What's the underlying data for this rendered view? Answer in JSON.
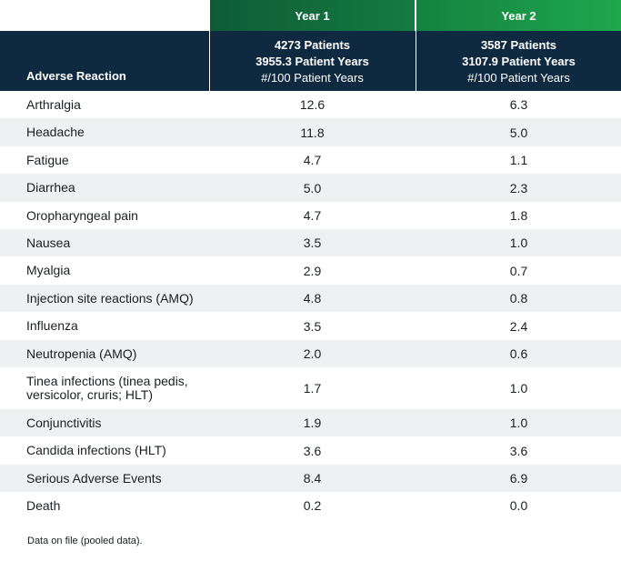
{
  "columns": {
    "year1": "Year 1",
    "year2": "Year 2",
    "reaction_header": "Adverse Reaction",
    "year1_patients": "4273 Patients",
    "year1_patient_years": "3955.3 Patient Years",
    "year1_unit": "#/100 Patient Years",
    "year2_patients": "3587 Patients",
    "year2_patient_years": "3107.9 Patient Years",
    "year2_unit": "#/100 Patient Years"
  },
  "rows": [
    {
      "name": "Arthralgia",
      "y1": "12.6",
      "y2": "6.3"
    },
    {
      "name": "Headache",
      "y1": "11.8",
      "y2": "5.0"
    },
    {
      "name": "Fatigue",
      "y1": "4.7",
      "y2": "1.1"
    },
    {
      "name": "Diarrhea",
      "y1": "5.0",
      "y2": "2.3"
    },
    {
      "name": "Oropharyngeal pain",
      "y1": "4.7",
      "y2": "1.8"
    },
    {
      "name": "Nausea",
      "y1": "3.5",
      "y2": "1.0"
    },
    {
      "name": "Myalgia",
      "y1": "2.9",
      "y2": "0.7"
    },
    {
      "name": "Injection site reactions (AMQ)",
      "y1": "4.8",
      "y2": "0.8"
    },
    {
      "name": "Influenza",
      "y1": "3.5",
      "y2": "2.4"
    },
    {
      "name": "Neutropenia (AMQ)",
      "y1": "2.0",
      "y2": "0.6"
    },
    {
      "name": "Tinea infections (tinea pedis, versicolor, cruris; HLT)",
      "y1": "1.7",
      "y2": "1.0"
    },
    {
      "name": "Conjunctivitis",
      "y1": "1.9",
      "y2": "1.0"
    },
    {
      "name": "Candida infections (HLT)",
      "y1": "3.6",
      "y2": "3.6"
    },
    {
      "name": "Serious Adverse Events",
      "y1": "8.4",
      "y2": "6.9"
    },
    {
      "name": "Death",
      "y1": "0.2",
      "y2": "0.0"
    }
  ],
  "footnote": "Data on file (pooled data)."
}
